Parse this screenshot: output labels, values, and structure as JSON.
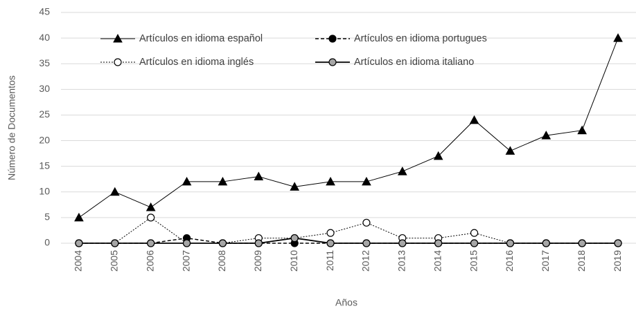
{
  "chart_data": {
    "type": "line",
    "ylabel": "Número de Documentos",
    "xlabel": "Años",
    "categories": [
      "2004",
      "2005",
      "2006",
      "2007",
      "2008",
      "2009",
      "2010",
      "2011",
      "2012",
      "2013",
      "2014",
      "2015",
      "2016",
      "2017",
      "2018",
      "2019"
    ],
    "series": [
      {
        "name": "Artículos en idioma español",
        "color": "#000000",
        "marker": "triangle",
        "marker_fill": "#000000",
        "dash": "none",
        "width": 1,
        "values": [
          5,
          10,
          7,
          12,
          12,
          13,
          11,
          12,
          12,
          14,
          17,
          24,
          18,
          21,
          22,
          40
        ]
      },
      {
        "name": "Artículos en idioma portugues",
        "color": "#000000",
        "marker": "circle",
        "marker_fill": "#000000",
        "dash": "5,3",
        "width": 1.5,
        "values": [
          0,
          0,
          0,
          1,
          0,
          0,
          0,
          0,
          0,
          0,
          0,
          0,
          0,
          0,
          0,
          0
        ]
      },
      {
        "name": "Artículos en idioma inglés",
        "color": "#000000",
        "marker": "circle",
        "marker_fill": "#ffffff",
        "dash": "2,2",
        "width": 1,
        "values": [
          0,
          0,
          5,
          0,
          0,
          1,
          1,
          2,
          4,
          1,
          1,
          2,
          0,
          0,
          0,
          0
        ]
      },
      {
        "name": "Artículos en idioma italiano",
        "color": "#000000",
        "marker": "circle",
        "marker_fill": "#a6a6a6",
        "dash": "none",
        "width": 1.8,
        "values": [
          0,
          0,
          0,
          0,
          0,
          0,
          1,
          0,
          0,
          0,
          0,
          0,
          0,
          0,
          0,
          0
        ]
      }
    ],
    "ylim": [
      0,
      45
    ],
    "yticks": [
      0,
      5,
      10,
      15,
      20,
      25,
      30,
      35,
      40,
      45
    ],
    "grid": true,
    "legend": "upper left"
  }
}
